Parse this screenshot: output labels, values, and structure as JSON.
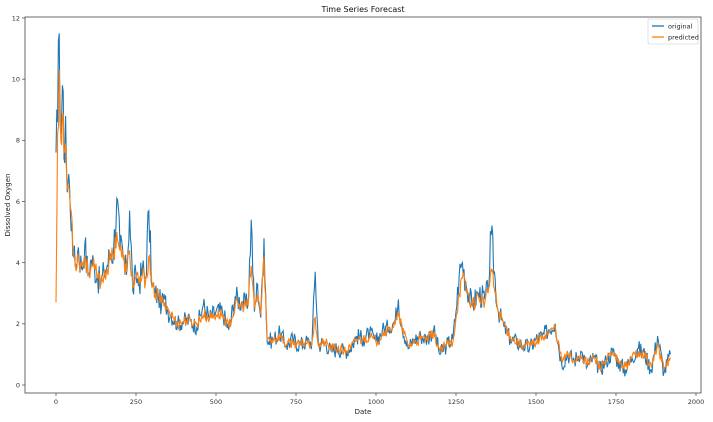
{
  "chart_data": {
    "type": "line",
    "title": "Time Series Forecast",
    "xlabel": "Date",
    "ylabel": "Dissolved Oxygen",
    "xlim": [
      -60,
      2010
    ],
    "ylim": [
      -0.5,
      12
    ],
    "xticks": [
      0,
      250,
      500,
      750,
      1000,
      1250,
      1500,
      1750,
      2000
    ],
    "yticks": [
      0,
      2,
      4,
      6,
      8,
      10,
      12
    ],
    "grid": false,
    "legend_position": "upper right",
    "series": [
      {
        "name": "original",
        "color": "#1f77b4"
      },
      {
        "name": "predicted",
        "color": "#ff7f0e"
      }
    ],
    "x": [
      0,
      5,
      10,
      15,
      20,
      25,
      30,
      35,
      40,
      45,
      50,
      55,
      60,
      70,
      80,
      90,
      100,
      110,
      120,
      130,
      140,
      150,
      160,
      170,
      180,
      190,
      200,
      210,
      220,
      230,
      240,
      250,
      260,
      270,
      280,
      290,
      300,
      310,
      320,
      330,
      340,
      350,
      360,
      380,
      400,
      420,
      440,
      460,
      480,
      500,
      520,
      540,
      560,
      580,
      600,
      610,
      620,
      630,
      640,
      650,
      660,
      680,
      700,
      720,
      740,
      760,
      780,
      800,
      810,
      820,
      840,
      860,
      880,
      900,
      920,
      940,
      960,
      980,
      1000,
      1020,
      1040,
      1060,
      1070,
      1080,
      1100,
      1120,
      1140,
      1160,
      1180,
      1200,
      1220,
      1240,
      1250,
      1260,
      1270,
      1280,
      1300,
      1320,
      1340,
      1350,
      1360,
      1380,
      1400,
      1420,
      1440,
      1460,
      1480,
      1500,
      1520,
      1540,
      1560,
      1580,
      1600,
      1620,
      1640,
      1660,
      1680,
      1700,
      1720,
      1740,
      1760,
      1780,
      1800,
      1820,
      1840,
      1860,
      1880,
      1900,
      1920
    ],
    "values_original": [
      7.6,
      8.6,
      11.5,
      8.2,
      9.8,
      7.4,
      8.8,
      6.3,
      6.9,
      5.6,
      5.3,
      4.2,
      3.9,
      4.5,
      3.8,
      4.6,
      3.6,
      4.1,
      3.9,
      3.5,
      3.3,
      3.7,
      3.9,
      4.3,
      4.4,
      6.1,
      4.5,
      4.2,
      3.6,
      5.7,
      3.1,
      3.6,
      3.3,
      3.8,
      3.5,
      5.7,
      3.2,
      3.0,
      2.9,
      2.6,
      2.8,
      2.4,
      2.3,
      2.0,
      2.1,
      2.1,
      1.9,
      2.6,
      2.2,
      2.4,
      2.4,
      1.8,
      2.9,
      2.7,
      2.6,
      5.4,
      2.4,
      3.3,
      2.2,
      4.8,
      1.4,
      1.5,
      1.7,
      1.3,
      1.5,
      1.3,
      1.4,
      1.4,
      3.7,
      1.3,
      1.4,
      1.1,
      1.2,
      1.1,
      1.2,
      1.6,
      1.5,
      1.7,
      1.4,
      1.8,
      1.9,
      2.1,
      2.8,
      2.0,
      1.2,
      1.5,
      1.6,
      1.5,
      1.8,
      1.0,
      1.3,
      1.5,
      2.4,
      3.6,
      4.0,
      3.4,
      2.6,
      3.0,
      2.8,
      3.1,
      4.9,
      2.5,
      1.9,
      1.5,
      1.4,
      1.3,
      1.2,
      1.5,
      1.6,
      1.8,
      2.0,
      0.7,
      1.0,
      0.8,
      1.1,
      0.6,
      0.9,
      0.5,
      0.8,
      1.1,
      0.7,
      0.5,
      0.9,
      1.2,
      1.0,
      0.5,
      1.6,
      0.4,
      1.0
    ],
    "values_predicted": [
      2.7,
      8.2,
      10.3,
      8.0,
      8.8,
      7.6,
      7.9,
      6.4,
      6.5,
      5.8,
      5.4,
      4.3,
      4.0,
      4.2,
      3.9,
      4.2,
      3.7,
      3.9,
      3.8,
      3.5,
      3.4,
      3.6,
      3.8,
      4.1,
      4.3,
      5.0,
      4.4,
      4.1,
      3.7,
      4.4,
      3.2,
      3.5,
      3.3,
      3.6,
      3.4,
      4.2,
      3.2,
      3.0,
      2.9,
      2.7,
      2.7,
      2.5,
      2.3,
      2.0,
      2.1,
      2.1,
      2.0,
      2.3,
      2.2,
      2.3,
      2.3,
      1.9,
      2.6,
      2.6,
      2.6,
      3.9,
      2.5,
      3.0,
      2.3,
      4.2,
      1.5,
      1.5,
      1.6,
      1.3,
      1.4,
      1.3,
      1.4,
      1.4,
      2.2,
      1.3,
      1.4,
      1.2,
      1.2,
      1.1,
      1.2,
      1.5,
      1.5,
      1.6,
      1.4,
      1.7,
      1.8,
      2.0,
      2.3,
      1.9,
      1.3,
      1.4,
      1.5,
      1.5,
      1.7,
      1.1,
      1.3,
      1.4,
      2.2,
      3.0,
      3.5,
      3.2,
      2.6,
      2.9,
      2.7,
      3.0,
      3.8,
      2.5,
      2.0,
      1.6,
      1.4,
      1.3,
      1.3,
      1.4,
      1.6,
      1.7,
      1.9,
      0.8,
      1.0,
      0.8,
      1.0,
      0.7,
      0.9,
      0.6,
      0.8,
      1.0,
      0.7,
      0.6,
      0.9,
      1.1,
      1.0,
      0.6,
      1.3,
      0.5,
      0.9
    ]
  },
  "legend": {
    "items": [
      {
        "label": "original",
        "color": "#1f77b4"
      },
      {
        "label": "predicted",
        "color": "#ff7f0e"
      }
    ]
  }
}
